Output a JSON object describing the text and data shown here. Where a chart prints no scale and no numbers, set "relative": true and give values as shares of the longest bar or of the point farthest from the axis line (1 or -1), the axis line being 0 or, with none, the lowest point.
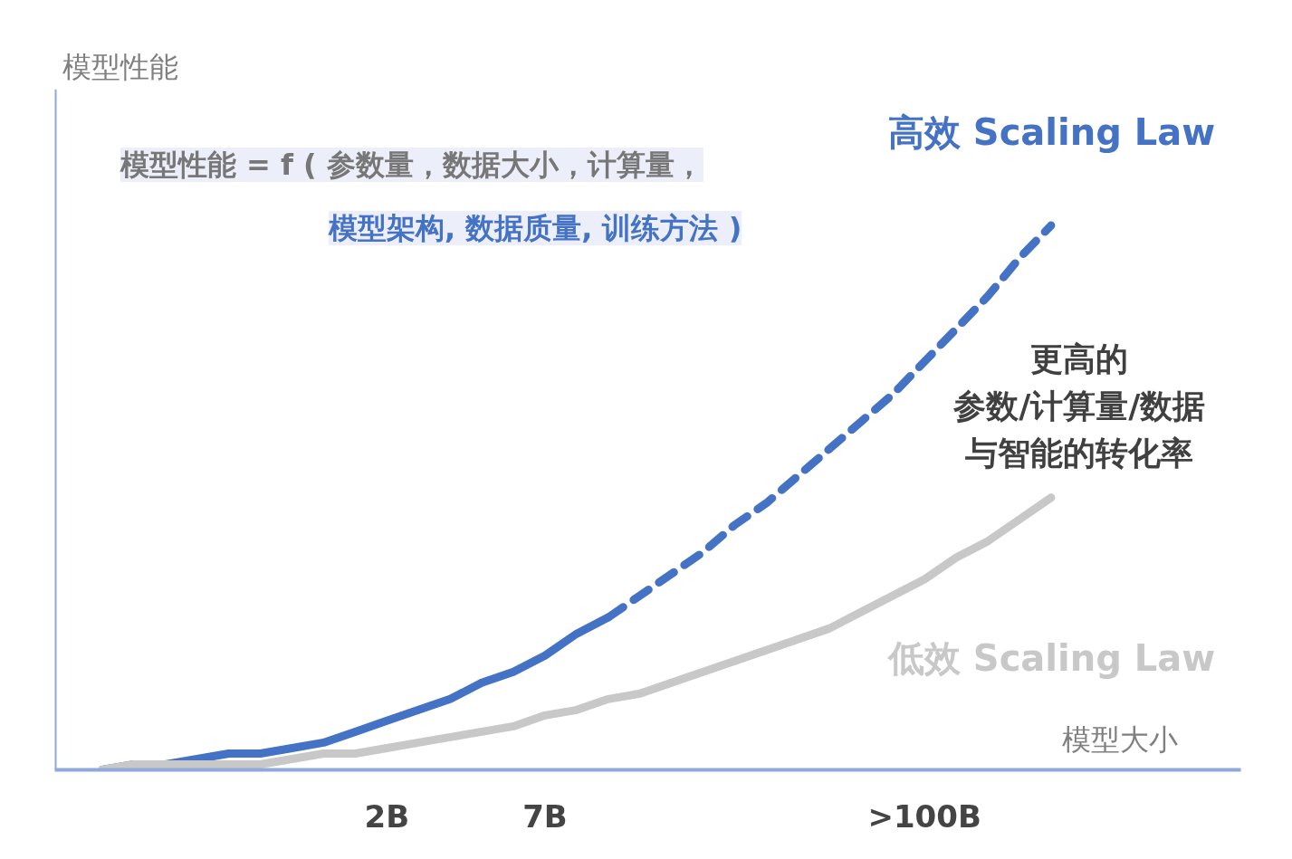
{
  "chart_data": {
    "type": "line",
    "relative": true,
    "ylabel": "模型性能",
    "xlabel": "模型大小",
    "categories": [
      null,
      null,
      null,
      null,
      null,
      null,
      null,
      null,
      null,
      "2B",
      null,
      null,
      null,
      null,
      "7B",
      null,
      null,
      null,
      null,
      null,
      null,
      null,
      null,
      null,
      null,
      null,
      ">100B",
      null,
      null,
      null,
      null
    ],
    "series": [
      {
        "color": "#4472c4",
        "line_style": "solid",
        "values": [
          0.0,
          0.01,
          0.01,
          0.02,
          0.03,
          0.03,
          0.04,
          0.05,
          0.07,
          0.09,
          0.11,
          0.13,
          0.16,
          0.18,
          0.21,
          0.25,
          0.28,
          null,
          null,
          null,
          null,
          null,
          null,
          null,
          null,
          null,
          null,
          null,
          null,
          null,
          null
        ]
      },
      {
        "name": "高效 Scaling Law",
        "color": "#4472c4",
        "line_style": "dashed",
        "values": [
          null,
          null,
          null,
          null,
          null,
          null,
          null,
          null,
          null,
          null,
          null,
          null,
          null,
          null,
          null,
          null,
          0.28,
          0.32,
          0.36,
          0.4,
          0.45,
          0.49,
          0.54,
          0.59,
          0.64,
          0.69,
          0.75,
          0.81,
          0.87,
          0.94,
          1.0
        ]
      },
      {
        "name": "低效 Scaling Law",
        "color": "#c8c8c8",
        "line_style": "solid",
        "values": [
          0.0,
          0.01,
          0.01,
          0.01,
          0.01,
          0.01,
          0.02,
          0.03,
          0.03,
          0.04,
          0.05,
          0.06,
          0.07,
          0.08,
          0.1,
          0.11,
          0.13,
          0.14,
          0.16,
          0.18,
          0.2,
          0.22,
          0.24,
          0.26,
          0.29,
          0.32,
          0.35,
          0.39,
          0.42,
          0.46,
          0.5
        ]
      }
    ],
    "annotations": [
      "模型性能 = f ( 参数量，数据大小，计算量，",
      "模型架构, 数据质量, 训练方法 )",
      "更高的",
      "参数/计算量/数据",
      "与智能的转化率"
    ],
    "grid": false
  }
}
